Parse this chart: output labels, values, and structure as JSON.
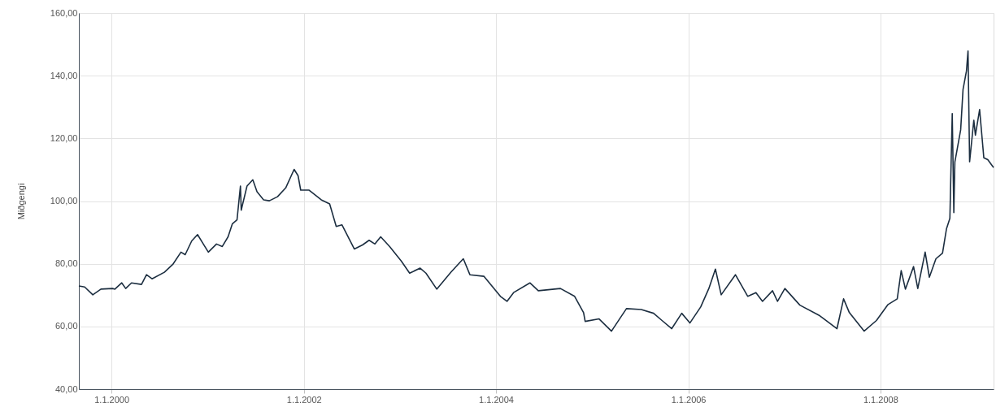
{
  "chart_data": {
    "type": "line",
    "ylabel": "Miðgengi",
    "x": [
      "1999-08-30",
      "1999-09-21",
      "1999-10-22",
      "1999-11-22",
      "2000-01-05",
      "2000-01-14",
      "2000-02-09",
      "2000-02-24",
      "2000-03-17",
      "2000-04-24",
      "2000-05-13",
      "2000-06-03",
      "2000-07-20",
      "2000-08-21",
      "2000-09-21",
      "2000-10-07",
      "2000-11-01",
      "2000-11-23",
      "2000-12-15",
      "2001-01-03",
      "2001-02-03",
      "2001-02-25",
      "2001-03-19",
      "2001-04-04",
      "2001-04-22",
      "2001-05-05",
      "2001-05-08",
      "2001-05-30",
      "2001-06-21",
      "2001-07-07",
      "2001-08-01",
      "2001-08-23",
      "2001-09-23",
      "2001-10-24",
      "2001-11-25",
      "2001-12-10",
      "2001-12-20",
      "2002-01-20",
      "2002-03-08",
      "2002-04-09",
      "2002-05-04",
      "2002-05-26",
      "2002-07-12",
      "2002-08-12",
      "2002-09-06",
      "2002-09-28",
      "2002-10-20",
      "2002-11-23",
      "2003-01-06",
      "2003-02-07",
      "2003-03-19",
      "2003-04-10",
      "2003-05-21",
      "2003-07-14",
      "2003-08-30",
      "2003-09-24",
      "2003-11-16",
      "2004-01-18",
      "2004-02-12",
      "2004-03-08",
      "2004-05-09",
      "2004-06-10",
      "2004-09-02",
      "2004-10-26",
      "2004-11-29",
      "2004-12-05",
      "2005-01-27",
      "2005-03-15",
      "2005-05-11",
      "2005-07-06",
      "2005-08-22",
      "2005-09-23",
      "2005-10-30",
      "2005-12-07",
      "2006-01-07",
      "2006-02-17",
      "2006-03-20",
      "2006-04-14",
      "2006-05-06",
      "2006-06-29",
      "2006-08-15",
      "2006-09-15",
      "2006-10-10",
      "2006-11-17",
      "2006-12-06",
      "2007-01-03",
      "2007-03-01",
      "2007-05-12",
      "2007-07-20",
      "2007-08-14",
      "2007-09-05",
      "2007-10-31",
      "2007-12-17",
      "2008-01-30",
      "2008-03-05",
      "2008-03-20",
      "2008-04-05",
      "2008-05-06",
      "2008-05-22",
      "2008-06-19",
      "2008-07-05",
      "2008-07-30",
      "2008-08-24",
      "2008-09-08",
      "2008-09-21",
      "2008-09-30",
      "2008-10-06",
      "2008-10-10",
      "2008-11-01",
      "2008-11-10",
      "2008-11-23",
      "2008-11-29",
      "2008-12-05",
      "2008-12-21",
      "2008-12-27",
      "2009-01-12",
      "2009-01-28",
      "2009-02-12",
      "2009-03-06"
    ],
    "series": [
      {
        "color": "#1c2e40",
        "values": [
          72.9,
          72.6,
          70.1,
          71.9,
          72.1,
          71.9,
          73.9,
          72.1,
          73.9,
          73.4,
          76.5,
          75.2,
          77.3,
          79.8,
          83.7,
          82.9,
          87.3,
          89.3,
          86.3,
          83.7,
          86.3,
          85.5,
          88.6,
          92.7,
          94.0,
          104.8,
          97.1,
          104.8,
          106.8,
          103.0,
          100.4,
          100.1,
          101.4,
          104.2,
          110.1,
          108.1,
          103.5,
          103.5,
          100.4,
          99.1,
          91.9,
          92.4,
          84.7,
          86.0,
          87.5,
          86.3,
          88.6,
          85.5,
          80.9,
          77.0,
          78.6,
          77.0,
          71.9,
          77.3,
          81.6,
          76.5,
          76.0,
          69.6,
          68.0,
          70.8,
          73.9,
          71.4,
          72.1,
          69.6,
          64.4,
          61.6,
          62.4,
          58.5,
          65.7,
          65.4,
          64.2,
          61.9,
          59.3,
          64.2,
          61.1,
          66.2,
          72.1,
          78.3,
          70.1,
          76.5,
          69.6,
          70.8,
          68.0,
          71.4,
          68.0,
          72.1,
          66.8,
          63.6,
          59.3,
          68.8,
          64.4,
          58.5,
          61.9,
          67.0,
          68.8,
          77.8,
          71.9,
          79.1,
          72.1,
          83.7,
          75.7,
          81.6,
          83.4,
          91.1,
          94.5,
          127.9,
          96.3,
          112.5,
          122.7,
          135.6,
          141.5,
          147.9,
          112.5,
          125.8,
          121.0,
          129.2,
          113.8,
          113.2,
          110.7
        ]
      }
    ],
    "xlim": [
      "1999-08-30",
      "2009-03-06"
    ],
    "xticks": [
      {
        "value": "2000-01-01",
        "label": "1.1.2000"
      },
      {
        "value": "2002-01-01",
        "label": "1.1.2002"
      },
      {
        "value": "2004-01-01",
        "label": "1.1.2004"
      },
      {
        "value": "2006-01-01",
        "label": "1.1.2006"
      },
      {
        "value": "2008-01-01",
        "label": "1.1.2008"
      }
    ],
    "ylim": [
      40,
      160
    ],
    "yticks": [
      {
        "value": 40,
        "label": "40,00"
      },
      {
        "value": 60,
        "label": "60,00"
      },
      {
        "value": 80,
        "label": "80,00"
      },
      {
        "value": 100,
        "label": "100,00"
      },
      {
        "value": 120,
        "label": "120,00"
      },
      {
        "value": 140,
        "label": "140,00"
      },
      {
        "value": 160,
        "label": "160,00"
      }
    ],
    "grid": true,
    "legend": false,
    "marker": "none",
    "line_style": "solid"
  }
}
